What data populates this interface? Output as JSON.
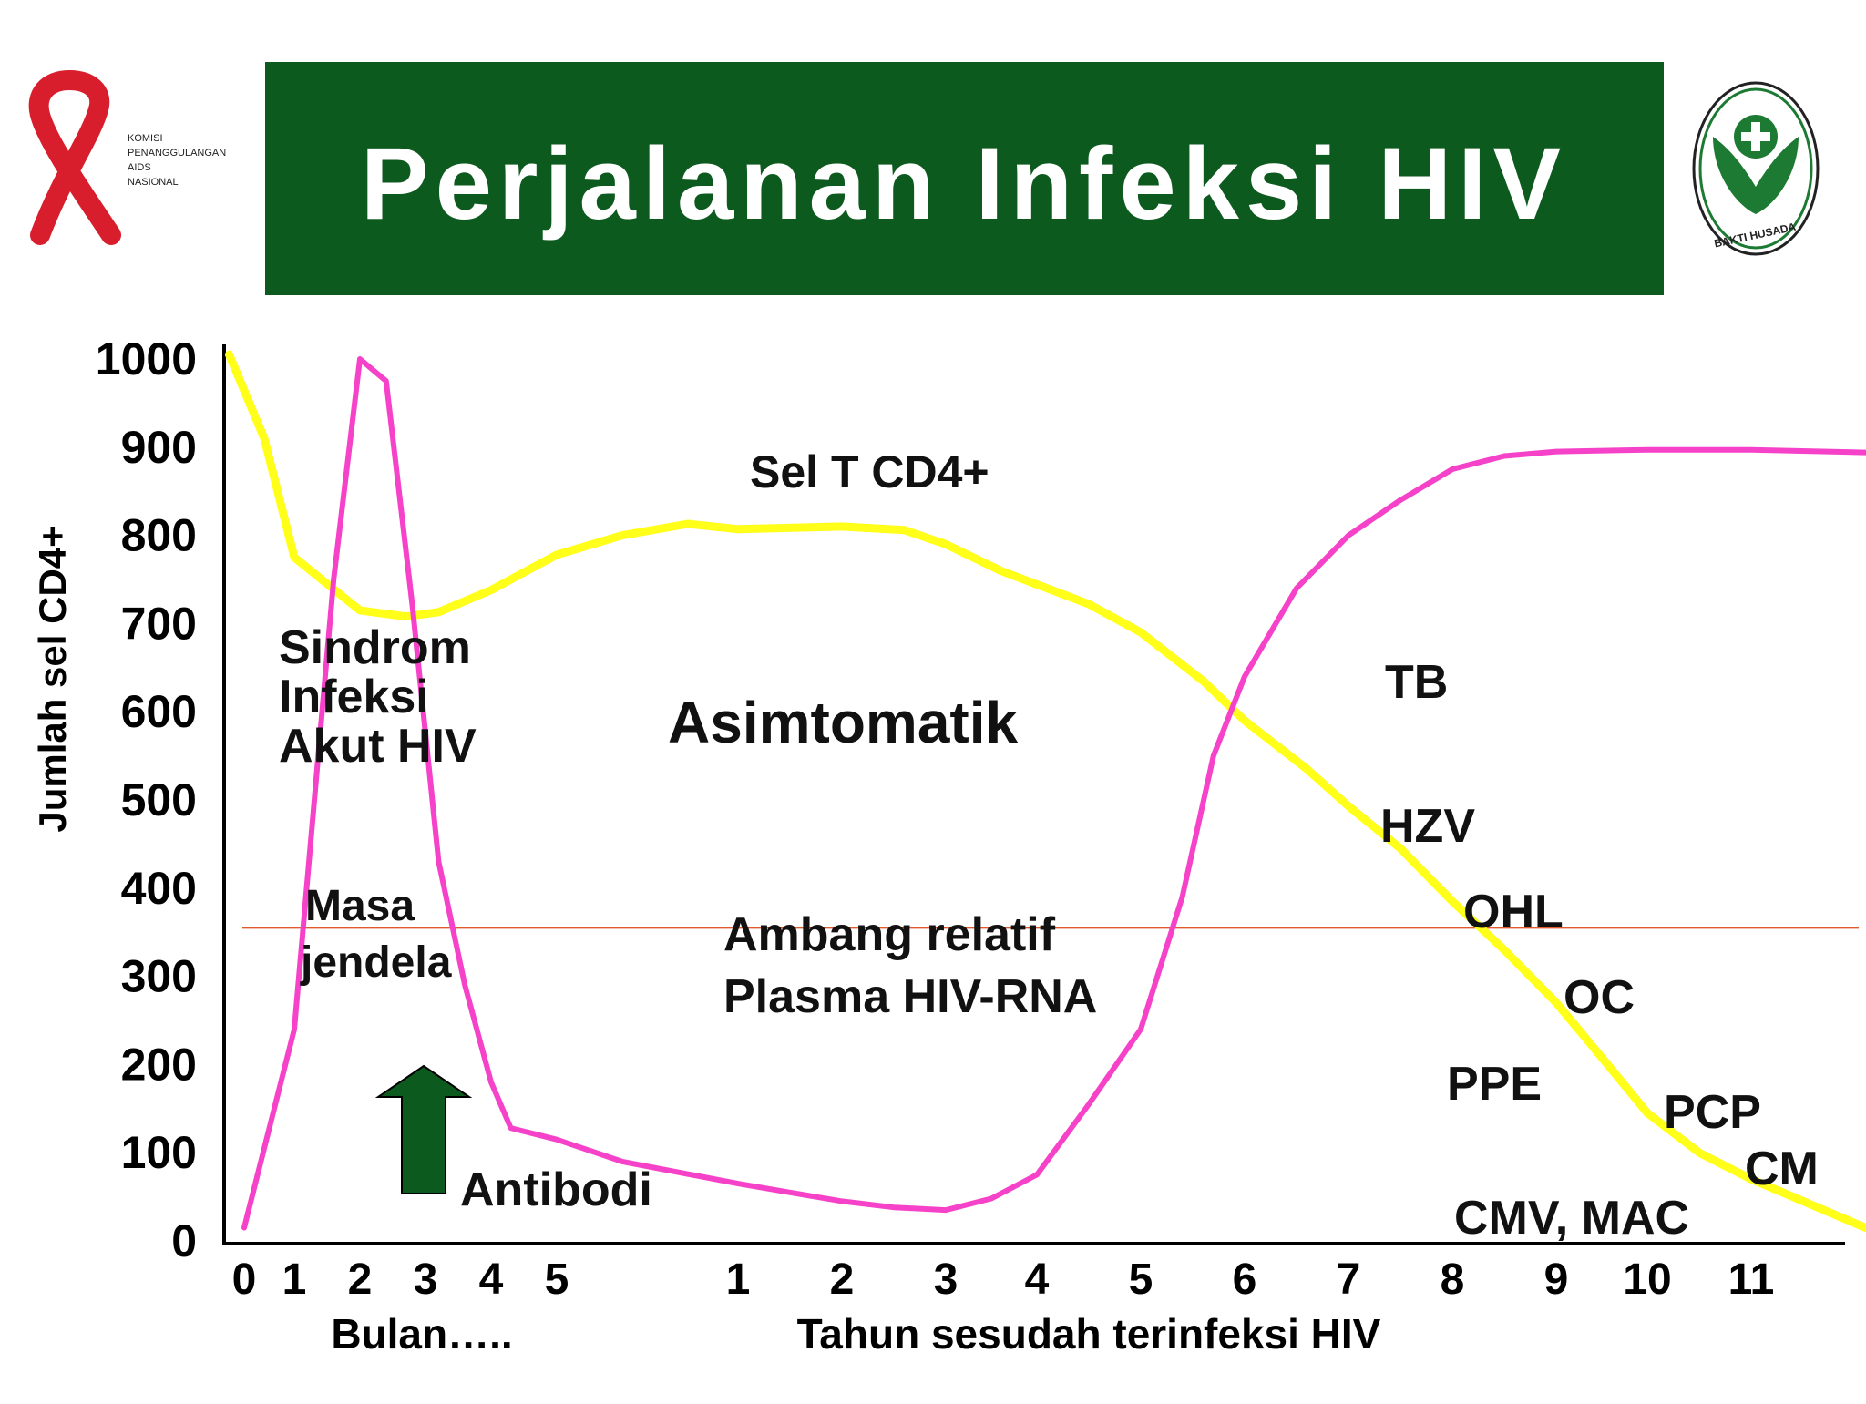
{
  "header": {
    "title": "Perjalanan Infeksi HIV",
    "bg_color": "#0d5a1f",
    "left_logo_text": [
      "KOMISI",
      "PENANGGULANGAN",
      "AIDS",
      "NASIONAL"
    ],
    "right_logo_text": "BAKTI HUSADA"
  },
  "chart_data": {
    "type": "line",
    "ylabel": "Jumlah sel CD4+",
    "ylim": [
      0,
      1000
    ],
    "y_ticks": [
      "1000",
      "900",
      "800",
      "700",
      "600",
      "500",
      "400",
      "300",
      "200",
      "100",
      "0"
    ],
    "x_ticks_months": [
      "0",
      "1",
      "2",
      "3",
      "4",
      "5"
    ],
    "x_ticks_years": [
      "1",
      "2",
      "3",
      "4",
      "5",
      "6",
      "7",
      "8",
      "9",
      "10",
      "11"
    ],
    "xlabel_months": "Bulan…..",
    "xlabel_years": "Tahun sesudah terinfeksi HIV",
    "threshold": {
      "value": 355,
      "color": "#e05a2b"
    },
    "series": [
      {
        "name": "Sel T CD4+",
        "color": "#ffff1a",
        "points": [
          [
            -0.3,
            1005
          ],
          [
            0.4,
            910
          ],
          [
            1,
            775
          ],
          [
            2,
            715
          ],
          [
            2.7,
            708
          ],
          [
            3.2,
            713
          ],
          [
            4,
            738
          ],
          [
            5,
            778
          ],
          [
            6,
            800
          ],
          [
            7,
            813
          ],
          [
            1,
            807
          ],
          [
            2,
            810
          ],
          [
            2.6,
            806
          ],
          [
            3,
            790
          ],
          [
            3.6,
            760
          ],
          [
            4.5,
            722
          ],
          [
            5,
            690
          ],
          [
            5.6,
            635
          ],
          [
            6,
            590
          ],
          [
            6.6,
            535
          ],
          [
            7,
            493
          ],
          [
            7.5,
            445
          ],
          [
            8,
            385
          ],
          [
            8.5,
            330
          ],
          [
            9,
            270
          ],
          [
            9.5,
            208
          ],
          [
            10,
            145
          ],
          [
            10.5,
            100
          ],
          [
            11,
            70
          ],
          [
            12.1,
            15
          ]
        ]
      },
      {
        "name": "Plasma HIV-RNA",
        "color": "#f542c8",
        "points": [
          [
            0,
            15
          ],
          [
            1,
            240
          ],
          [
            1.6,
            750
          ],
          [
            2,
            1000
          ],
          [
            2.4,
            975
          ],
          [
            2.8,
            720
          ],
          [
            3.2,
            430
          ],
          [
            3.6,
            290
          ],
          [
            4,
            180
          ],
          [
            4.3,
            128
          ],
          [
            5,
            115
          ],
          [
            6,
            90
          ],
          [
            1,
            65
          ],
          [
            1.5,
            55
          ],
          [
            2,
            45
          ],
          [
            2.5,
            38
          ],
          [
            3,
            35
          ],
          [
            3.5,
            48
          ],
          [
            4,
            75
          ],
          [
            4.5,
            155
          ],
          [
            5,
            240
          ],
          [
            5.4,
            390
          ],
          [
            5.7,
            550
          ],
          [
            6,
            640
          ],
          [
            6.5,
            740
          ],
          [
            7,
            800
          ],
          [
            7.5,
            840
          ],
          [
            8,
            875
          ],
          [
            8.5,
            890
          ],
          [
            9,
            895
          ],
          [
            10,
            897
          ],
          [
            11,
            897
          ],
          [
            12.1,
            894
          ]
        ]
      }
    ],
    "annotations": {
      "sel_t": "Sel T CD4+",
      "asimtomatik": "Asimtomatik",
      "sindrom": [
        "Sindrom",
        "Infeksi",
        "Akut HIV"
      ],
      "masa": [
        "Masa",
        "jendela"
      ],
      "ambang": [
        "Ambang relatif",
        "Plasma HIV-RNA"
      ],
      "antibodi": "Antibodi",
      "tb": "TB",
      "hzv": "HZV",
      "ohl": "OHL",
      "oc": "OC",
      "ppe": "PPE",
      "pcp": "PCP",
      "cm": "CM",
      "cmv": "CMV, MAC"
    }
  }
}
